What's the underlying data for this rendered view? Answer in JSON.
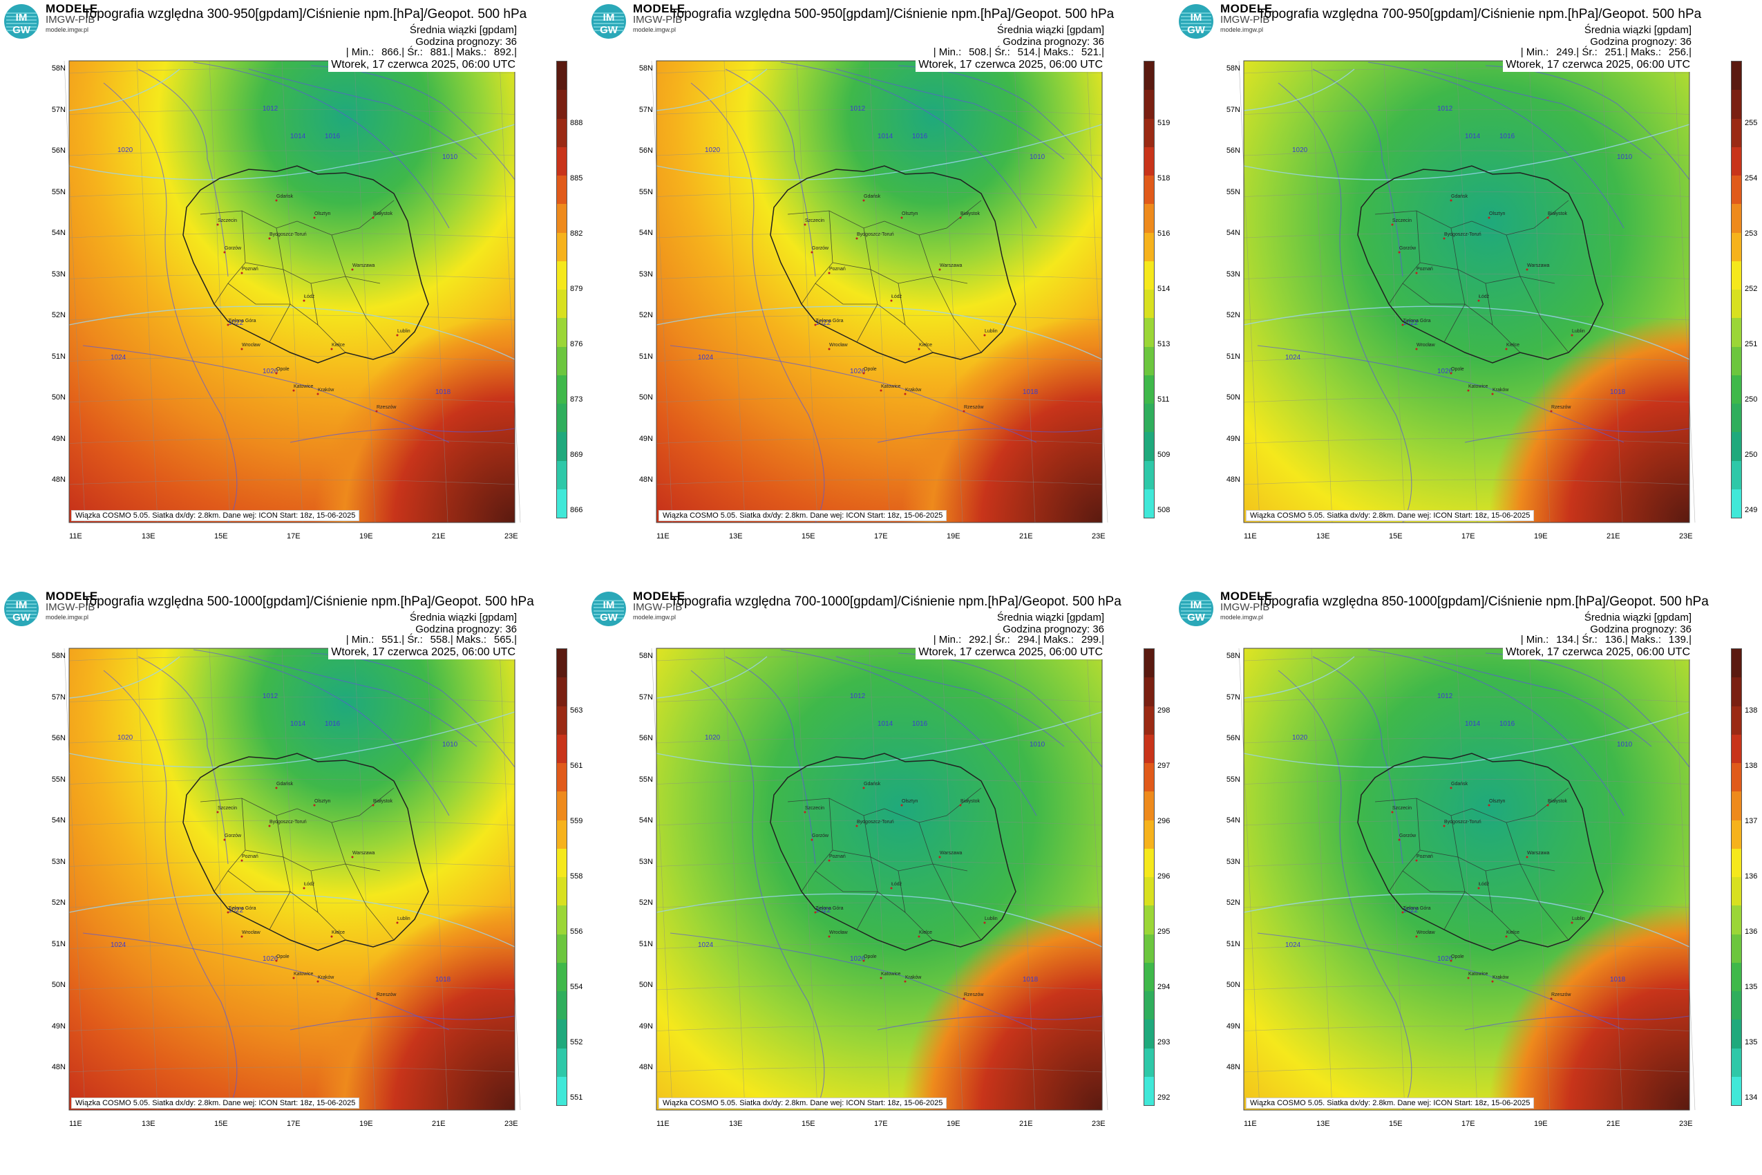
{
  "branding": {
    "name": "MODELE",
    "org": "IMGW-PIB",
    "site": "modele.imgw.pl",
    "logo_text_top": "IM",
    "logo_text_bottom": "GW"
  },
  "common": {
    "subtitle": "Średnia wiązki [gpdam]",
    "forecast_hour": "Godzina prognozy: 36",
    "valid_time": "Wtorek, 17 czerwca 2025, 06:00 UTC",
    "footer": "Wiązka COSMO 5.05. Siatka dx/dy: 2.8km. Dane wej: ICON Start: 18z, 15-06-2025",
    "lat_labels": [
      "58N",
      "57N",
      "56N",
      "55N",
      "54N",
      "53N",
      "52N",
      "51N",
      "50N",
      "49N",
      "48N"
    ],
    "lon_labels": [
      "11E",
      "13E",
      "15E",
      "17E",
      "19E",
      "21E",
      "23E"
    ]
  },
  "panels": [
    {
      "title": "Topografia względna 300-950[gpdam]/Ciśnienie npm.[hPa]/Geopot. 500 hPa",
      "min": "866.",
      "avg": "881.",
      "max": "892.",
      "colorbar": [
        "888",
        "885",
        "882",
        "879",
        "876",
        "873",
        "869",
        "866"
      ],
      "scheme": "warm"
    },
    {
      "title": "Topografia względna 500-950[gpdam]/Ciśnienie npm.[hPa]/Geopot. 500 hPa",
      "min": "508.",
      "avg": "514.",
      "max": "521.",
      "colorbar": [
        "519",
        "518",
        "516",
        "514",
        "513",
        "511",
        "509",
        "508"
      ],
      "scheme": "warm"
    },
    {
      "title": "Topografia względna 700-950[gpdam]/Ciśnienie npm.[hPa]/Geopot. 500 hPa",
      "min": "249.",
      "avg": "251.",
      "max": "256.",
      "colorbar": [
        "255",
        "254",
        "253",
        "252",
        "251",
        "250",
        "250",
        "249"
      ],
      "scheme": "green"
    },
    {
      "title": "Topografia względna 500-1000[gpdam]/Ciśnienie npm.[hPa]/Geopot. 500 hPa",
      "min": "551.",
      "avg": "558.",
      "max": "565.",
      "colorbar": [
        "563",
        "561",
        "559",
        "558",
        "556",
        "554",
        "552",
        "551"
      ],
      "scheme": "warm"
    },
    {
      "title": "Topografia względna 700-1000[gpdam]/Ciśnienie npm.[hPa]/Geopot. 500 hPa",
      "min": "292.",
      "avg": "294.",
      "max": "299.",
      "colorbar": [
        "298",
        "297",
        "296",
        "296",
        "295",
        "294",
        "293",
        "292"
      ],
      "scheme": "green"
    },
    {
      "title": "Topografia względna 850-1000[gpdam]/Ciśnienie npm.[hPa]/Geopot. 500 hPa",
      "min": "134.",
      "avg": "136.",
      "max": "139.",
      "colorbar": [
        "138",
        "138",
        "137",
        "136",
        "136",
        "135",
        "135",
        "134"
      ],
      "scheme": "green"
    }
  ],
  "stat_labels": {
    "min": "| Min.:",
    "avg": "| Śr.:",
    "max": "| Maks.:",
    "end": "|"
  },
  "isobar_labels": [
    "1016",
    "1014",
    "1012",
    "1020",
    "1022",
    "1024",
    "1026",
    "1018",
    "1010"
  ],
  "cities": [
    "Szczecin",
    "Gdańsk",
    "Olsztyn",
    "Białystok",
    "Bydgoszcz-Toruń",
    "Gorzów",
    "Poznań",
    "Warszawa",
    "Łódź",
    "Zielona Góra",
    "Lublin",
    "Wrocław",
    "Kielce",
    "Opole",
    "Katowice",
    "Kraków",
    "Rzeszów"
  ],
  "colors": {
    "dark_red": "#5a1a10",
    "red": "#c8341a",
    "orange": "#ee8a1c",
    "yellow": "#f5e81c",
    "light_green": "#9bd637",
    "green": "#3fb84a",
    "teal": "#1fa97c",
    "cyan": "#40e8d8",
    "isobar": "#5b58d6",
    "geopot": "#9bd4f0"
  }
}
